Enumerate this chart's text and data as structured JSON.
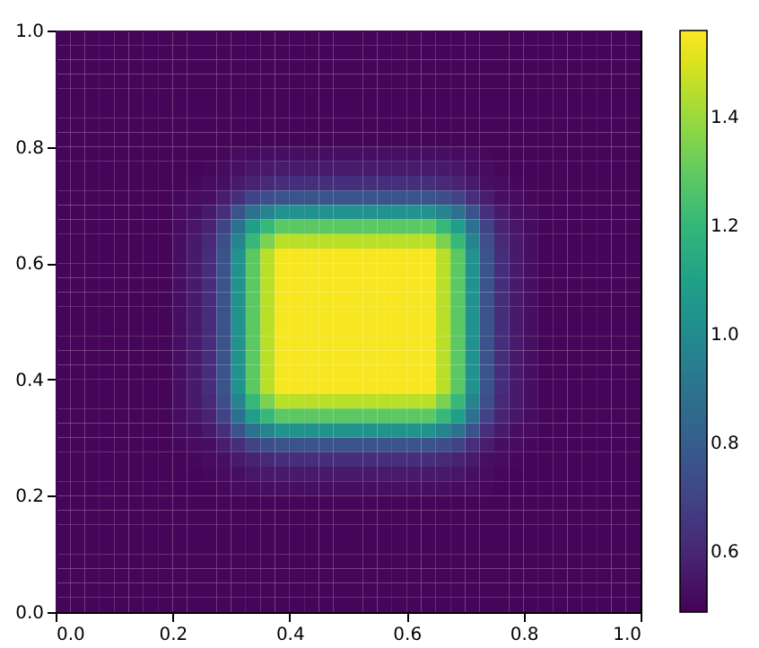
{
  "chart_data": {
    "type": "heatmap",
    "xlim": [
      0,
      1
    ],
    "ylim": [
      0,
      1
    ],
    "xticks": [
      {
        "value": 0,
        "label": "0.0"
      },
      {
        "value": 0.2,
        "label": "0.2"
      },
      {
        "value": 0.4,
        "label": "0.4"
      },
      {
        "value": 0.6,
        "label": "0.6"
      },
      {
        "value": 0.8,
        "label": "0.8"
      },
      {
        "value": 1,
        "label": "1.0"
      }
    ],
    "yticks": [
      {
        "value": 0,
        "label": "0.0"
      },
      {
        "value": 0.2,
        "label": "0.2"
      },
      {
        "value": 0.4,
        "label": "0.4"
      },
      {
        "value": 0.6,
        "label": "0.6"
      },
      {
        "value": 0.8,
        "label": "0.8"
      },
      {
        "value": 1,
        "label": "1.0"
      }
    ],
    "clim": [
      0.49,
      1.56
    ],
    "cticks": [
      0.6,
      0.8,
      {
        "value": 1,
        "label": "1.0"
      },
      1.2,
      1.4
    ],
    "cells": [
      [
        0.5,
        0.5,
        0.5,
        0.5,
        0.5,
        0.5,
        0.5,
        0.5,
        0.5,
        0.5,
        0.5,
        0.5,
        0.5,
        0.5,
        0.5,
        0.5,
        0.5,
        0.5,
        0.5,
        0.5,
        0.5,
        0.5,
        0.5,
        0.5,
        0.5,
        0.5,
        0.5,
        0.5,
        0.5,
        0.5,
        0.5,
        0.5,
        0.5,
        0.5,
        0.5,
        0.5,
        0.5,
        0.5,
        0.5,
        0.5
      ],
      [
        0.5,
        0.5,
        0.5,
        0.5,
        0.5,
        0.5,
        0.5,
        0.5,
        0.5,
        0.5,
        0.5,
        0.5,
        0.5,
        0.5,
        0.5,
        0.5,
        0.5,
        0.5,
        0.5,
        0.5,
        0.5,
        0.5,
        0.5,
        0.5,
        0.5,
        0.5,
        0.5,
        0.5,
        0.5,
        0.5,
        0.5,
        0.5,
        0.5,
        0.5,
        0.5,
        0.5,
        0.5,
        0.5,
        0.5,
        0.5
      ],
      [
        0.5,
        0.5,
        0.5,
        0.5,
        0.5,
        0.5,
        0.5,
        0.5,
        0.5,
        0.5,
        0.5,
        0.5,
        0.5,
        0.5,
        0.5,
        0.5,
        0.5,
        0.5,
        0.5,
        0.5,
        0.5,
        0.5,
        0.5,
        0.5,
        0.5,
        0.5,
        0.5,
        0.5,
        0.5,
        0.5,
        0.5,
        0.5,
        0.5,
        0.5,
        0.5,
        0.5,
        0.5,
        0.5,
        0.5,
        0.5
      ],
      [
        0.5,
        0.5,
        0.5,
        0.5,
        0.5,
        0.5,
        0.5,
        0.5,
        0.5,
        0.5,
        0.5,
        0.5,
        0.5,
        0.5,
        0.5,
        0.5,
        0.5,
        0.5,
        0.5,
        0.5,
        0.5,
        0.5,
        0.5,
        0.5,
        0.5,
        0.5,
        0.5,
        0.5,
        0.5,
        0.5,
        0.5,
        0.5,
        0.5,
        0.5,
        0.5,
        0.5,
        0.5,
        0.5,
        0.5,
        0.5
      ],
      [
        0.5,
        0.5,
        0.5,
        0.5,
        0.5,
        0.5,
        0.5,
        0.5,
        0.5,
        0.5,
        0.5,
        0.5,
        0.5,
        0.5,
        0.5,
        0.5,
        0.5,
        0.5,
        0.5,
        0.5,
        0.5,
        0.5,
        0.5,
        0.5,
        0.5,
        0.5,
        0.5,
        0.5,
        0.5,
        0.5,
        0.5,
        0.5,
        0.5,
        0.5,
        0.5,
        0.5,
        0.5,
        0.5,
        0.5,
        0.5
      ],
      [
        0.5,
        0.5,
        0.5,
        0.5,
        0.5,
        0.5,
        0.5,
        0.5,
        0.5,
        0.5,
        0.5,
        0.5,
        0.5,
        0.5,
        0.5,
        0.5,
        0.5,
        0.5,
        0.5,
        0.5,
        0.5,
        0.5,
        0.5,
        0.5,
        0.5,
        0.5,
        0.5,
        0.5,
        0.5,
        0.5,
        0.5,
        0.5,
        0.5,
        0.5,
        0.5,
        0.5,
        0.5,
        0.5,
        0.5,
        0.5
      ],
      [
        0.5,
        0.5,
        0.5,
        0.5,
        0.5,
        0.5,
        0.5,
        0.5,
        0.5,
        0.5,
        0.5,
        0.5,
        0.5,
        0.5,
        0.5,
        0.5,
        0.5,
        0.5,
        0.5,
        0.5,
        0.5,
        0.5,
        0.5,
        0.5,
        0.5,
        0.5,
        0.5,
        0.5,
        0.5,
        0.5,
        0.5,
        0.5,
        0.5,
        0.5,
        0.5,
        0.5,
        0.5,
        0.5,
        0.5,
        0.5
      ],
      [
        0.5,
        0.5,
        0.5,
        0.5,
        0.5,
        0.5,
        0.5,
        0.5,
        0.5,
        0.5,
        0.5,
        0.5,
        0.5,
        0.5,
        0.5,
        0.5,
        0.5,
        0.5,
        0.5,
        0.5,
        0.5,
        0.5,
        0.5,
        0.5,
        0.5,
        0.5,
        0.5,
        0.5,
        0.5,
        0.5,
        0.5,
        0.5,
        0.5,
        0.5,
        0.5,
        0.5,
        0.5,
        0.5,
        0.5,
        0.5
      ],
      [
        0.5,
        0.5,
        0.5,
        0.5,
        0.5,
        0.5,
        0.5,
        0.5,
        0.5,
        0.5,
        0.5,
        0.51,
        0.52,
        0.52,
        0.53,
        0.53,
        0.53,
        0.53,
        0.53,
        0.53,
        0.53,
        0.53,
        0.53,
        0.53,
        0.53,
        0.53,
        0.53,
        0.52,
        0.52,
        0.51,
        0.5,
        0.5,
        0.5,
        0.5,
        0.5,
        0.5,
        0.5,
        0.5,
        0.5,
        0.5
      ],
      [
        0.5,
        0.5,
        0.5,
        0.5,
        0.5,
        0.5,
        0.5,
        0.5,
        0.5,
        0.5,
        0.51,
        0.52,
        0.53,
        0.55,
        0.56,
        0.56,
        0.56,
        0.56,
        0.56,
        0.56,
        0.56,
        0.56,
        0.56,
        0.56,
        0.56,
        0.56,
        0.56,
        0.55,
        0.53,
        0.52,
        0.51,
        0.5,
        0.5,
        0.5,
        0.5,
        0.5,
        0.5,
        0.5,
        0.5,
        0.5
      ],
      [
        0.5,
        0.5,
        0.5,
        0.5,
        0.5,
        0.5,
        0.5,
        0.5,
        0.5,
        0.51,
        0.52,
        0.53,
        0.56,
        0.59,
        0.61,
        0.63,
        0.63,
        0.63,
        0.63,
        0.63,
        0.63,
        0.63,
        0.63,
        0.63,
        0.63,
        0.63,
        0.61,
        0.59,
        0.56,
        0.53,
        0.52,
        0.51,
        0.5,
        0.5,
        0.5,
        0.5,
        0.5,
        0.5,
        0.5,
        0.5
      ],
      [
        0.5,
        0.5,
        0.5,
        0.5,
        0.5,
        0.5,
        0.5,
        0.5,
        0.51,
        0.52,
        0.53,
        0.57,
        0.63,
        0.7,
        0.74,
        0.76,
        0.76,
        0.76,
        0.76,
        0.76,
        0.76,
        0.76,
        0.76,
        0.76,
        0.76,
        0.76,
        0.74,
        0.7,
        0.63,
        0.57,
        0.53,
        0.52,
        0.51,
        0.5,
        0.5,
        0.5,
        0.5,
        0.5,
        0.5,
        0.5
      ],
      [
        0.5,
        0.5,
        0.5,
        0.5,
        0.5,
        0.5,
        0.5,
        0.5,
        0.52,
        0.53,
        0.56,
        0.63,
        0.76,
        0.89,
        0.97,
        1.03,
        1.03,
        1.03,
        1.03,
        1.03,
        1.03,
        1.03,
        1.03,
        1.03,
        1.03,
        1.03,
        0.97,
        0.89,
        0.76,
        0.63,
        0.56,
        0.53,
        0.52,
        0.5,
        0.5,
        0.5,
        0.5,
        0.5,
        0.5,
        0.5
      ],
      [
        0.5,
        0.5,
        0.5,
        0.5,
        0.5,
        0.5,
        0.5,
        0.5,
        0.52,
        0.55,
        0.59,
        0.7,
        0.89,
        1.09,
        1.21,
        1.29,
        1.29,
        1.29,
        1.29,
        1.29,
        1.29,
        1.29,
        1.29,
        1.29,
        1.29,
        1.29,
        1.21,
        1.09,
        0.89,
        0.7,
        0.59,
        0.55,
        0.52,
        0.5,
        0.5,
        0.5,
        0.5,
        0.5,
        0.5,
        0.5
      ],
      [
        0.5,
        0.5,
        0.5,
        0.5,
        0.5,
        0.5,
        0.5,
        0.5,
        0.53,
        0.56,
        0.61,
        0.74,
        0.97,
        1.21,
        1.35,
        1.45,
        1.45,
        1.45,
        1.45,
        1.45,
        1.45,
        1.45,
        1.45,
        1.45,
        1.45,
        1.45,
        1.35,
        1.21,
        0.97,
        0.74,
        0.61,
        0.56,
        0.53,
        0.5,
        0.5,
        0.5,
        0.5,
        0.5,
        0.5,
        0.5
      ],
      [
        0.5,
        0.5,
        0.5,
        0.5,
        0.5,
        0.5,
        0.5,
        0.5,
        0.53,
        0.56,
        0.63,
        0.76,
        1.03,
        1.29,
        1.45,
        1.55,
        1.55,
        1.55,
        1.55,
        1.55,
        1.55,
        1.55,
        1.55,
        1.55,
        1.55,
        1.55,
        1.45,
        1.29,
        1.03,
        0.76,
        0.63,
        0.56,
        0.53,
        0.5,
        0.5,
        0.5,
        0.5,
        0.5,
        0.5,
        0.5
      ],
      [
        0.5,
        0.5,
        0.5,
        0.5,
        0.5,
        0.5,
        0.5,
        0.5,
        0.53,
        0.56,
        0.63,
        0.76,
        1.03,
        1.29,
        1.45,
        1.55,
        1.55,
        1.55,
        1.55,
        1.55,
        1.55,
        1.55,
        1.55,
        1.55,
        1.55,
        1.55,
        1.45,
        1.29,
        1.03,
        0.76,
        0.63,
        0.56,
        0.53,
        0.5,
        0.5,
        0.5,
        0.5,
        0.5,
        0.5,
        0.5
      ],
      [
        0.5,
        0.5,
        0.5,
        0.5,
        0.5,
        0.5,
        0.5,
        0.5,
        0.53,
        0.56,
        0.63,
        0.76,
        1.03,
        1.29,
        1.45,
        1.55,
        1.55,
        1.55,
        1.55,
        1.55,
        1.55,
        1.55,
        1.55,
        1.55,
        1.55,
        1.55,
        1.45,
        1.29,
        1.03,
        0.76,
        0.63,
        0.56,
        0.53,
        0.5,
        0.5,
        0.5,
        0.5,
        0.5,
        0.5,
        0.5
      ],
      [
        0.5,
        0.5,
        0.5,
        0.5,
        0.5,
        0.5,
        0.5,
        0.5,
        0.53,
        0.56,
        0.63,
        0.76,
        1.03,
        1.29,
        1.45,
        1.55,
        1.55,
        1.55,
        1.55,
        1.55,
        1.55,
        1.55,
        1.55,
        1.55,
        1.55,
        1.55,
        1.45,
        1.29,
        1.03,
        0.76,
        0.63,
        0.56,
        0.53,
        0.5,
        0.5,
        0.5,
        0.5,
        0.5,
        0.5,
        0.5
      ],
      [
        0.5,
        0.5,
        0.5,
        0.5,
        0.5,
        0.5,
        0.5,
        0.5,
        0.53,
        0.56,
        0.63,
        0.76,
        1.03,
        1.29,
        1.45,
        1.55,
        1.55,
        1.55,
        1.55,
        1.55,
        1.55,
        1.55,
        1.55,
        1.55,
        1.55,
        1.55,
        1.45,
        1.29,
        1.03,
        0.76,
        0.63,
        0.56,
        0.53,
        0.5,
        0.5,
        0.5,
        0.5,
        0.5,
        0.5,
        0.5
      ],
      [
        0.5,
        0.5,
        0.5,
        0.5,
        0.5,
        0.5,
        0.5,
        0.5,
        0.53,
        0.56,
        0.63,
        0.76,
        1.03,
        1.29,
        1.45,
        1.55,
        1.55,
        1.55,
        1.55,
        1.55,
        1.55,
        1.55,
        1.55,
        1.55,
        1.55,
        1.55,
        1.45,
        1.29,
        1.03,
        0.76,
        0.63,
        0.56,
        0.53,
        0.5,
        0.5,
        0.5,
        0.5,
        0.5,
        0.5,
        0.5
      ],
      [
        0.5,
        0.5,
        0.5,
        0.5,
        0.5,
        0.5,
        0.5,
        0.5,
        0.53,
        0.56,
        0.63,
        0.76,
        1.03,
        1.29,
        1.45,
        1.55,
        1.55,
        1.55,
        1.55,
        1.55,
        1.55,
        1.55,
        1.55,
        1.55,
        1.55,
        1.55,
        1.45,
        1.29,
        1.03,
        0.76,
        0.63,
        0.56,
        0.53,
        0.5,
        0.5,
        0.5,
        0.5,
        0.5,
        0.5,
        0.5
      ],
      [
        0.5,
        0.5,
        0.5,
        0.5,
        0.5,
        0.5,
        0.5,
        0.5,
        0.53,
        0.56,
        0.63,
        0.76,
        1.03,
        1.29,
        1.45,
        1.55,
        1.55,
        1.55,
        1.55,
        1.55,
        1.55,
        1.55,
        1.55,
        1.55,
        1.55,
        1.55,
        1.45,
        1.29,
        1.03,
        0.76,
        0.63,
        0.56,
        0.53,
        0.5,
        0.5,
        0.5,
        0.5,
        0.5,
        0.5,
        0.5
      ],
      [
        0.5,
        0.5,
        0.5,
        0.5,
        0.5,
        0.5,
        0.5,
        0.5,
        0.53,
        0.56,
        0.63,
        0.76,
        1.03,
        1.29,
        1.45,
        1.55,
        1.55,
        1.55,
        1.55,
        1.55,
        1.55,
        1.55,
        1.55,
        1.55,
        1.55,
        1.55,
        1.45,
        1.29,
        1.03,
        0.76,
        0.63,
        0.56,
        0.53,
        0.5,
        0.5,
        0.5,
        0.5,
        0.5,
        0.5,
        0.5
      ],
      [
        0.5,
        0.5,
        0.5,
        0.5,
        0.5,
        0.5,
        0.5,
        0.5,
        0.53,
        0.56,
        0.63,
        0.76,
        1.03,
        1.29,
        1.45,
        1.55,
        1.55,
        1.55,
        1.55,
        1.55,
        1.55,
        1.55,
        1.55,
        1.55,
        1.55,
        1.55,
        1.45,
        1.29,
        1.03,
        0.76,
        0.63,
        0.56,
        0.53,
        0.5,
        0.5,
        0.5,
        0.5,
        0.5,
        0.5,
        0.5
      ],
      [
        0.5,
        0.5,
        0.5,
        0.5,
        0.5,
        0.5,
        0.5,
        0.5,
        0.53,
        0.56,
        0.61,
        0.74,
        0.97,
        1.21,
        1.35,
        1.45,
        1.45,
        1.45,
        1.45,
        1.45,
        1.45,
        1.45,
        1.45,
        1.45,
        1.45,
        1.45,
        1.35,
        1.21,
        0.97,
        0.74,
        0.61,
        0.56,
        0.53,
        0.5,
        0.5,
        0.5,
        0.5,
        0.5,
        0.5,
        0.5
      ],
      [
        0.5,
        0.5,
        0.5,
        0.5,
        0.5,
        0.5,
        0.5,
        0.5,
        0.52,
        0.55,
        0.59,
        0.7,
        0.89,
        1.09,
        1.21,
        1.29,
        1.29,
        1.29,
        1.29,
        1.29,
        1.29,
        1.29,
        1.29,
        1.29,
        1.29,
        1.29,
        1.21,
        1.09,
        0.89,
        0.7,
        0.59,
        0.55,
        0.52,
        0.5,
        0.5,
        0.5,
        0.5,
        0.5,
        0.5,
        0.5
      ],
      [
        0.5,
        0.5,
        0.5,
        0.5,
        0.5,
        0.5,
        0.5,
        0.5,
        0.52,
        0.53,
        0.56,
        0.63,
        0.76,
        0.89,
        0.97,
        1.03,
        1.03,
        1.03,
        1.03,
        1.03,
        1.03,
        1.03,
        1.03,
        1.03,
        1.03,
        1.03,
        0.97,
        0.89,
        0.76,
        0.63,
        0.56,
        0.53,
        0.52,
        0.5,
        0.5,
        0.5,
        0.5,
        0.5,
        0.5,
        0.5
      ],
      [
        0.5,
        0.5,
        0.5,
        0.5,
        0.5,
        0.5,
        0.5,
        0.5,
        0.51,
        0.52,
        0.53,
        0.57,
        0.63,
        0.7,
        0.74,
        0.76,
        0.76,
        0.76,
        0.76,
        0.76,
        0.76,
        0.76,
        0.76,
        0.76,
        0.76,
        0.76,
        0.74,
        0.7,
        0.63,
        0.57,
        0.53,
        0.52,
        0.51,
        0.5,
        0.5,
        0.5,
        0.5,
        0.5,
        0.5,
        0.5
      ],
      [
        0.5,
        0.5,
        0.5,
        0.5,
        0.5,
        0.5,
        0.5,
        0.5,
        0.5,
        0.51,
        0.52,
        0.53,
        0.56,
        0.59,
        0.61,
        0.63,
        0.63,
        0.63,
        0.63,
        0.63,
        0.63,
        0.63,
        0.63,
        0.63,
        0.63,
        0.63,
        0.61,
        0.59,
        0.56,
        0.53,
        0.52,
        0.51,
        0.5,
        0.5,
        0.5,
        0.5,
        0.5,
        0.5,
        0.5,
        0.5
      ],
      [
        0.5,
        0.5,
        0.5,
        0.5,
        0.5,
        0.5,
        0.5,
        0.5,
        0.5,
        0.5,
        0.51,
        0.52,
        0.53,
        0.55,
        0.56,
        0.56,
        0.56,
        0.56,
        0.56,
        0.56,
        0.56,
        0.56,
        0.56,
        0.56,
        0.56,
        0.56,
        0.56,
        0.55,
        0.53,
        0.52,
        0.51,
        0.5,
        0.5,
        0.5,
        0.5,
        0.5,
        0.5,
        0.5,
        0.5,
        0.5
      ],
      [
        0.5,
        0.5,
        0.5,
        0.5,
        0.5,
        0.5,
        0.5,
        0.5,
        0.5,
        0.5,
        0.5,
        0.51,
        0.52,
        0.52,
        0.53,
        0.53,
        0.53,
        0.53,
        0.53,
        0.53,
        0.53,
        0.53,
        0.53,
        0.53,
        0.53,
        0.53,
        0.53,
        0.52,
        0.52,
        0.51,
        0.5,
        0.5,
        0.5,
        0.5,
        0.5,
        0.5,
        0.5,
        0.5,
        0.5,
        0.5
      ],
      [
        0.5,
        0.5,
        0.5,
        0.5,
        0.5,
        0.5,
        0.5,
        0.5,
        0.5,
        0.5,
        0.5,
        0.5,
        0.5,
        0.5,
        0.5,
        0.5,
        0.5,
        0.5,
        0.5,
        0.5,
        0.5,
        0.5,
        0.5,
        0.5,
        0.5,
        0.5,
        0.5,
        0.5,
        0.5,
        0.5,
        0.5,
        0.5,
        0.5,
        0.5,
        0.5,
        0.5,
        0.5,
        0.5,
        0.5,
        0.5
      ],
      [
        0.5,
        0.5,
        0.5,
        0.5,
        0.5,
        0.5,
        0.5,
        0.5,
        0.5,
        0.5,
        0.5,
        0.5,
        0.5,
        0.5,
        0.5,
        0.5,
        0.5,
        0.5,
        0.5,
        0.5,
        0.5,
        0.5,
        0.5,
        0.5,
        0.5,
        0.5,
        0.5,
        0.5,
        0.5,
        0.5,
        0.5,
        0.5,
        0.5,
        0.5,
        0.5,
        0.5,
        0.5,
        0.5,
        0.5,
        0.5
      ],
      [
        0.5,
        0.5,
        0.5,
        0.5,
        0.5,
        0.5,
        0.5,
        0.5,
        0.5,
        0.5,
        0.5,
        0.5,
        0.5,
        0.5,
        0.5,
        0.5,
        0.5,
        0.5,
        0.5,
        0.5,
        0.5,
        0.5,
        0.5,
        0.5,
        0.5,
        0.5,
        0.5,
        0.5,
        0.5,
        0.5,
        0.5,
        0.5,
        0.5,
        0.5,
        0.5,
        0.5,
        0.5,
        0.5,
        0.5,
        0.5
      ],
      [
        0.5,
        0.5,
        0.5,
        0.5,
        0.5,
        0.5,
        0.5,
        0.5,
        0.5,
        0.5,
        0.5,
        0.5,
        0.5,
        0.5,
        0.5,
        0.5,
        0.5,
        0.5,
        0.5,
        0.5,
        0.5,
        0.5,
        0.5,
        0.5,
        0.5,
        0.5,
        0.5,
        0.5,
        0.5,
        0.5,
        0.5,
        0.5,
        0.5,
        0.5,
        0.5,
        0.5,
        0.5,
        0.5,
        0.5,
        0.5
      ],
      [
        0.5,
        0.5,
        0.5,
        0.5,
        0.5,
        0.5,
        0.5,
        0.5,
        0.5,
        0.5,
        0.5,
        0.5,
        0.5,
        0.5,
        0.5,
        0.5,
        0.5,
        0.5,
        0.5,
        0.5,
        0.5,
        0.5,
        0.5,
        0.5,
        0.5,
        0.5,
        0.5,
        0.5,
        0.5,
        0.5,
        0.5,
        0.5,
        0.5,
        0.5,
        0.5,
        0.5,
        0.5,
        0.5,
        0.5,
        0.5
      ],
      [
        0.5,
        0.5,
        0.5,
        0.5,
        0.5,
        0.5,
        0.5,
        0.5,
        0.5,
        0.5,
        0.5,
        0.5,
        0.5,
        0.5,
        0.5,
        0.5,
        0.5,
        0.5,
        0.5,
        0.5,
        0.5,
        0.5,
        0.5,
        0.5,
        0.5,
        0.5,
        0.5,
        0.5,
        0.5,
        0.5,
        0.5,
        0.5,
        0.5,
        0.5,
        0.5,
        0.5,
        0.5,
        0.5,
        0.5,
        0.5
      ],
      [
        0.5,
        0.5,
        0.5,
        0.5,
        0.5,
        0.5,
        0.5,
        0.5,
        0.5,
        0.5,
        0.5,
        0.5,
        0.5,
        0.5,
        0.5,
        0.5,
        0.5,
        0.5,
        0.5,
        0.5,
        0.5,
        0.5,
        0.5,
        0.5,
        0.5,
        0.5,
        0.5,
        0.5,
        0.5,
        0.5,
        0.5,
        0.5,
        0.5,
        0.5,
        0.5,
        0.5,
        0.5,
        0.5,
        0.5,
        0.5
      ],
      [
        0.5,
        0.5,
        0.5,
        0.5,
        0.5,
        0.5,
        0.5,
        0.5,
        0.5,
        0.5,
        0.5,
        0.5,
        0.5,
        0.5,
        0.5,
        0.5,
        0.5,
        0.5,
        0.5,
        0.5,
        0.5,
        0.5,
        0.5,
        0.5,
        0.5,
        0.5,
        0.5,
        0.5,
        0.5,
        0.5,
        0.5,
        0.5,
        0.5,
        0.5,
        0.5,
        0.5,
        0.5,
        0.5,
        0.5,
        0.5
      ]
    ]
  }
}
